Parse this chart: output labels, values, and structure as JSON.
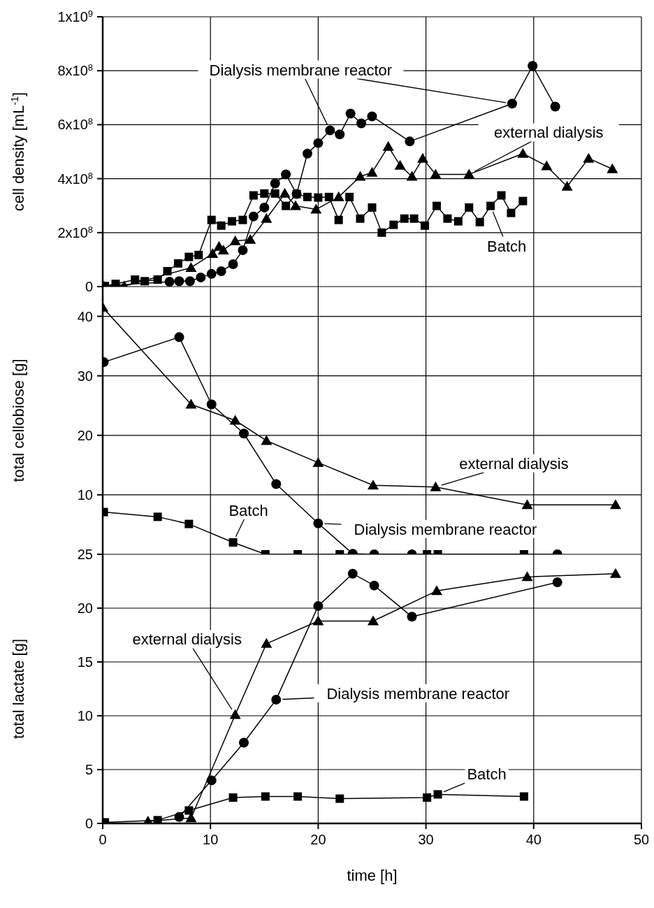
{
  "chart_data": [
    {
      "type": "line",
      "ylabel": "cell density [mL$^{-1}$]",
      "xlim": [
        0,
        50
      ],
      "xticks": [
        0,
        10,
        20,
        30,
        40,
        50
      ],
      "ylim": [
        0,
        1000000000.0
      ],
      "yticks": [
        0,
        {
          "value": 200000000.0,
          "label": "2x10$^{8}$"
        },
        {
          "value": 400000000.0,
          "label": "4x10$^{8}$"
        },
        {
          "value": 600000000.0,
          "label": "6x10$^{8}$"
        },
        {
          "value": 800000000.0,
          "label": "8x10$^{8}$"
        },
        {
          "value": 1000000000.0,
          "label": "1x10$^{9}$"
        }
      ],
      "grid": true,
      "tick_labels": "y",
      "line_style": "solid",
      "series": [
        {
          "name": "Dialysis membrane reactor",
          "color": "#000000",
          "marker": "circle",
          "x": [
            0,
            6.2,
            7.1,
            8.1,
            9.1,
            10.1,
            11,
            12.1,
            13,
            14,
            15,
            16,
            17,
            18,
            19,
            20,
            21.1,
            22,
            23,
            24,
            25,
            28.5,
            38,
            39.9,
            42
          ],
          "values": [
            2000000.0,
            18000000.0,
            20000000.0,
            20000000.0,
            34000000.0,
            47000000.0,
            57000000.0,
            83000000.0,
            135000000.0,
            260000000.0,
            293000000.0,
            382000000.0,
            416000000.0,
            343000000.0,
            493000000.0,
            532000000.0,
            579000000.0,
            564000000.0,
            641000000.0,
            605000000.0,
            631000000.0,
            538000000.0,
            678000000.0,
            818000000.0,
            667000000.0
          ]
        },
        {
          "name": "external dialysis",
          "color": "#000000",
          "marker": "triangle",
          "x": [
            0,
            2,
            8.2,
            10.2,
            10.8,
            11.2,
            12.3,
            13.7,
            15.2,
            16.9,
            17.9,
            19.8,
            21.9,
            23.9,
            25,
            26.5,
            27.6,
            28.7,
            29.7,
            30.9,
            34,
            39,
            41.2,
            43.1,
            45.1,
            47.3
          ],
          "values": [
            2000000.0,
            2000000.0,
            70000000.0,
            122000000.0,
            148000000.0,
            135000000.0,
            169000000.0,
            174000000.0,
            252000000.0,
            345000000.0,
            299000000.0,
            286000000.0,
            332000000.0,
            408000000.0,
            423000000.0,
            519000000.0,
            449000000.0,
            408000000.0,
            475000000.0,
            416000000.0,
            416000000.0,
            493000000.0,
            447000000.0,
            371000000.0,
            475000000.0,
            436000000.0
          ]
        },
        {
          "name": "Batch",
          "color": "#000000",
          "marker": "square",
          "x": [
            0.2,
            1.2,
            3,
            3.9,
            5.1,
            6,
            7,
            8,
            8.9,
            10.1,
            11,
            12,
            13,
            14,
            15,
            16,
            17,
            18,
            19,
            20,
            21,
            21.9,
            22.9,
            23.9,
            25,
            25.9,
            27,
            28,
            28.9,
            29.9,
            31,
            32,
            33,
            34,
            35,
            36,
            37,
            37.9,
            39
          ],
          "values": [
            2000000.0,
            10000000.0,
            26000000.0,
            20000000.0,
            26000000.0,
            57000000.0,
            86000000.0,
            110000000.0,
            117000000.0,
            247000000.0,
            226000000.0,
            242000000.0,
            247000000.0,
            338000000.0,
            345000000.0,
            345000000.0,
            299000000.0,
            343000000.0,
            332000000.0,
            330000000.0,
            332000000.0,
            247000000.0,
            332000000.0,
            252000000.0,
            293000000.0,
            200000000.0,
            229000000.0,
            252000000.0,
            252000000.0,
            226000000.0,
            299000000.0,
            252000000.0,
            242000000.0,
            293000000.0,
            239000000.0,
            299000000.0,
            338000000.0,
            273000000.0,
            317000000.0
          ]
        }
      ]
    },
    {
      "type": "line",
      "ylabel": "total cellobiose [g]",
      "xlim": [
        0,
        50
      ],
      "xticks": [
        0,
        10,
        20,
        30,
        40,
        50
      ],
      "ylim": [
        0,
        45
      ],
      "yticks": [
        10,
        20,
        30,
        40
      ],
      "grid": true,
      "tick_labels": "y",
      "line_style": "solid",
      "series": [
        {
          "name": "Dialysis membrane reactor",
          "color": "#000000",
          "marker": "circle",
          "x": [
            0.1,
            7.1,
            10.1,
            13.1,
            16.1,
            20,
            23.2,
            25.2,
            28.7,
            42.2
          ],
          "values": [
            32.3,
            36.5,
            25.2,
            20.3,
            11.8,
            5.2,
            0.1,
            0,
            0,
            0
          ]
        },
        {
          "name": "external dialysis",
          "color": "#000000",
          "marker": "triangle",
          "x": [
            0,
            8.2,
            12.3,
            15.2,
            20,
            25.1,
            30.9,
            39.4,
            47.6
          ],
          "values": [
            41.5,
            25.2,
            22.5,
            19.1,
            15.4,
            11.6,
            11.3,
            8.3,
            8.3
          ]
        },
        {
          "name": "Batch",
          "color": "#000000",
          "marker": "square",
          "x": [
            0.1,
            5.1,
            8,
            12.1,
            15.1,
            18.1,
            22,
            30.1,
            31.1,
            39.1
          ],
          "values": [
            7.1,
            6.3,
            5.1,
            2,
            0,
            0,
            0,
            0,
            0,
            0
          ]
        }
      ]
    },
    {
      "type": "line",
      "xlabel": "time [h]",
      "ylabel": "total lactate [g]",
      "xlim": [
        0,
        50
      ],
      "xticks": [
        0,
        10,
        20,
        30,
        40,
        50
      ],
      "ylim": [
        0,
        25
      ],
      "yticks": [
        0,
        5,
        10,
        15,
        20,
        25
      ],
      "grid": true,
      "line_style": "solid",
      "series": [
        {
          "name": "Dialysis membrane reactor",
          "color": "#000000",
          "marker": "circle",
          "x": [
            7.1,
            10.1,
            13.1,
            16.1,
            20,
            23.2,
            25.2,
            28.7,
            42.2
          ],
          "values": [
            0.6,
            4,
            7.5,
            11.5,
            20.2,
            23.2,
            22.1,
            19.2,
            22.4
          ]
        },
        {
          "name": "external dialysis",
          "color": "#000000",
          "marker": "triangle",
          "x": [
            4.2,
            8.2,
            12.3,
            15.2,
            20,
            25.1,
            31,
            39.4,
            47.6
          ],
          "values": [
            0.2,
            0.5,
            10.1,
            16.7,
            18.8,
            18.8,
            21.6,
            22.9,
            23.2
          ]
        },
        {
          "name": "Batch",
          "color": "#000000",
          "marker": "square",
          "x": [
            0.2,
            5.1,
            8,
            12.1,
            15.1,
            18.1,
            22,
            30.1,
            31.1,
            39.1
          ],
          "values": [
            0.1,
            0.3,
            1.2,
            2.4,
            2.5,
            2.5,
            2.3,
            2.4,
            2.7,
            2.5
          ]
        }
      ]
    }
  ]
}
